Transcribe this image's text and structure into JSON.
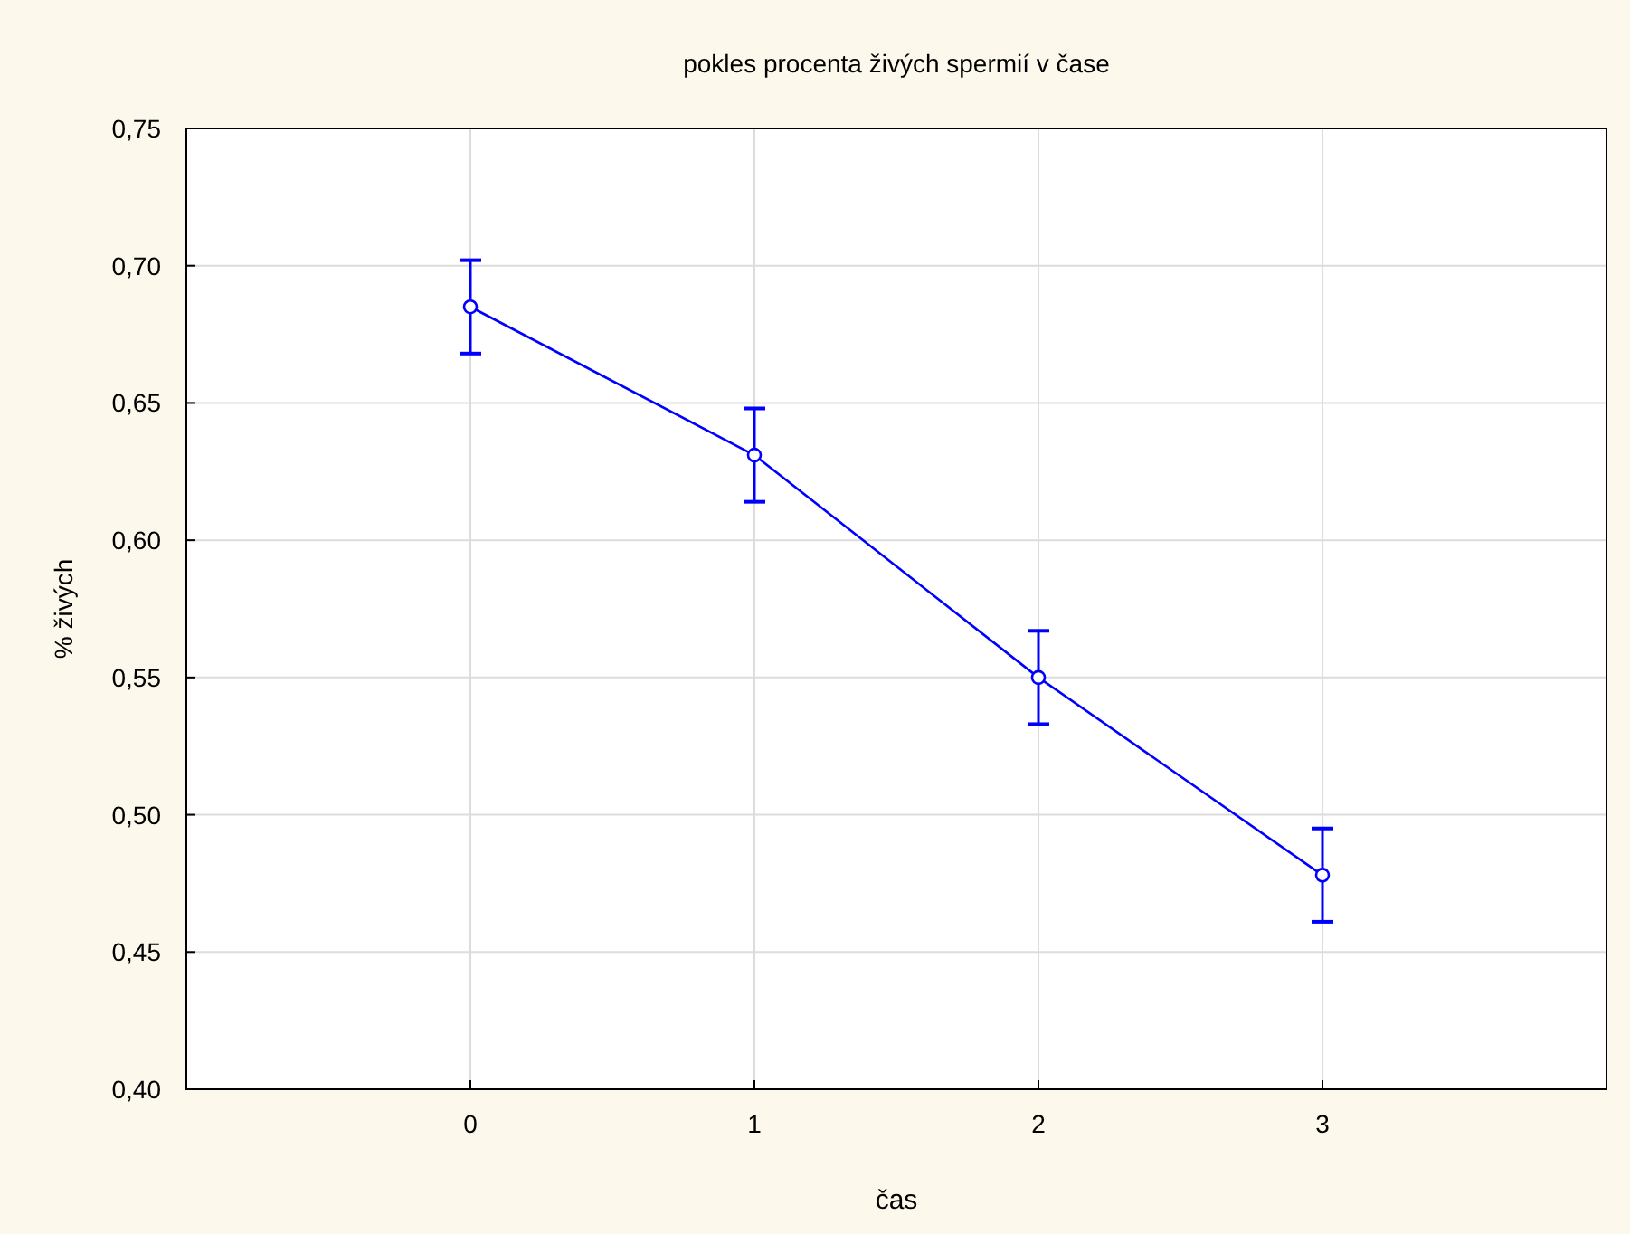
{
  "chart_data": {
    "type": "line",
    "title": "pokles procenta živých spermií v čase",
    "xlabel": "čas",
    "ylabel": "% živých",
    "x": [
      0,
      1,
      2,
      3
    ],
    "series": [
      {
        "color": "#0000ff",
        "values": [
          0.685,
          0.631,
          0.55,
          0.478
        ],
        "errors": [
          0.017,
          0.017,
          0.017,
          0.017
        ]
      }
    ],
    "xlim": [
      -1,
      4
    ],
    "xticks": [
      0,
      1,
      2,
      3
    ],
    "ylim": [
      0.4,
      0.75
    ],
    "yticks": [
      {
        "value": 0.4,
        "label": "0,40"
      },
      {
        "value": 0.45,
        "label": "0,45"
      },
      {
        "value": 0.5,
        "label": "0,50"
      },
      {
        "value": 0.55,
        "label": "0,55"
      },
      {
        "value": 0.6,
        "label": "0,60"
      },
      {
        "value": 0.65,
        "label": "0,65"
      },
      {
        "value": 0.7,
        "label": "0,70"
      },
      {
        "value": 0.75,
        "label": "0,75"
      }
    ],
    "grid": true,
    "marker": "circle",
    "line_style": "solid"
  }
}
